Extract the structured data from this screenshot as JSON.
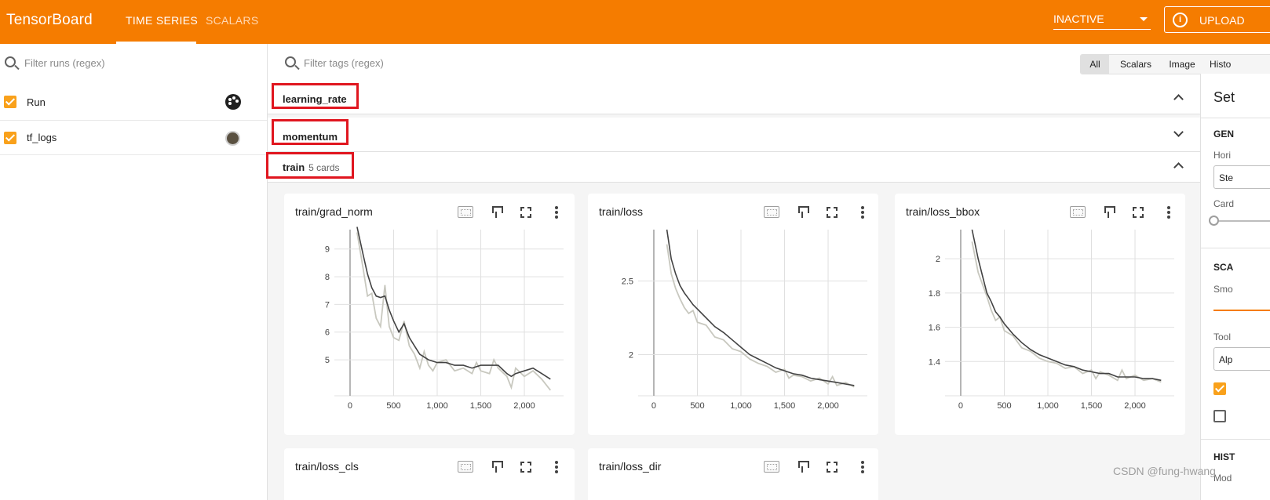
{
  "app": {
    "brand": "TensorBoard"
  },
  "nav": {
    "tabs": [
      "TIME SERIES",
      "SCALARS"
    ],
    "status_select": "INACTIVE",
    "upload_label": "UPLOAD",
    "info_glyph": "i"
  },
  "runs_pane": {
    "filter_placeholder": "Filter runs (regex)",
    "runs": [
      {
        "name": "Run",
        "checked": true,
        "accessory": "palette-icon"
      },
      {
        "name": "tf_logs",
        "checked": true,
        "accessory": "color-swatch",
        "color": "#5a5141"
      }
    ]
  },
  "filter_bar": {
    "placeholder": "Filter tags (regex)",
    "type_buttons": [
      "All",
      "Scalars",
      "Image",
      "Histo"
    ]
  },
  "groups": [
    {
      "name": "learning_rate",
      "count": "",
      "expanded": true
    },
    {
      "name": "momentum",
      "count": "",
      "expanded": false
    },
    {
      "name": "train",
      "count": "5 cards",
      "expanded": true
    }
  ],
  "cards": [
    {
      "title": "train/grad_norm"
    },
    {
      "title": "train/loss"
    },
    {
      "title": "train/loss_bbox"
    },
    {
      "title": "train/loss_cls"
    },
    {
      "title": "train/loss_dir"
    }
  ],
  "settings_panel": {
    "title": "Set",
    "general_heading": "GEN",
    "horizontal_label": "Hori",
    "horizontal_value": "Ste",
    "card_width_label": "Card",
    "scalars_heading": "SCA",
    "smoothing_label": "Smo",
    "tooltip_label": "Tool",
    "tooltip_value": "Alp",
    "histograms_heading": "HIST",
    "mode_label": "Mod"
  },
  "watermark": "CSDN @fung-hwang",
  "colors": {
    "accent": "#f57c00",
    "smoothed_line": "#424242",
    "raw_line": "#c8c8bf",
    "highlight": "#e0161f"
  },
  "chart_data": [
    {
      "type": "line",
      "title": "train/grad_norm",
      "xlabel": "",
      "ylabel": "",
      "xlim": [
        -180,
        2450
      ],
      "ylim": [
        3.7,
        9.7
      ],
      "xticks": [
        0,
        500,
        1000,
        1500,
        2000
      ],
      "xtick_labels": [
        "0",
        "500",
        "1,000",
        "1,500",
        "2,000"
      ],
      "yticks": [
        5,
        6,
        7,
        8,
        9
      ],
      "ytick_labels": [
        "5",
        "6",
        "7",
        "8",
        "9"
      ],
      "series": [
        {
          "role": "smoothed",
          "x": [
            80,
            150,
            200,
            250,
            300,
            350,
            400,
            450,
            500,
            560,
            620,
            680,
            740,
            800,
            900,
            1000,
            1100,
            1200,
            1300,
            1400,
            1500,
            1600,
            1700,
            1800,
            1850,
            1900,
            2000,
            2100,
            2200,
            2300
          ],
          "y": [
            9.8,
            8.8,
            8.1,
            7.6,
            7.3,
            7.25,
            7.3,
            6.8,
            6.4,
            6.0,
            6.3,
            5.8,
            5.5,
            5.2,
            5.0,
            4.9,
            4.9,
            4.8,
            4.8,
            4.7,
            4.8,
            4.8,
            4.8,
            4.5,
            4.4,
            4.5,
            4.6,
            4.7,
            4.5,
            4.3
          ]
        },
        {
          "role": "raw",
          "x": [
            80,
            150,
            200,
            250,
            300,
            350,
            400,
            450,
            500,
            560,
            620,
            680,
            740,
            800,
            850,
            900,
            950,
            1000,
            1100,
            1200,
            1300,
            1400,
            1450,
            1500,
            1600,
            1650,
            1700,
            1800,
            1850,
            1900,
            2000,
            2100,
            2200,
            2300
          ],
          "y": [
            9.6,
            8.3,
            7.3,
            7.4,
            6.5,
            6.2,
            7.7,
            6.2,
            5.8,
            5.7,
            6.4,
            5.5,
            5.2,
            4.7,
            5.3,
            4.8,
            4.6,
            4.9,
            5.0,
            4.6,
            4.7,
            4.5,
            4.9,
            4.6,
            4.5,
            5.0,
            4.7,
            4.4,
            4.0,
            4.7,
            4.4,
            4.6,
            4.3,
            3.9
          ]
        }
      ]
    },
    {
      "type": "line",
      "title": "train/loss",
      "xlabel": "",
      "ylabel": "",
      "xlim": [
        -180,
        2450
      ],
      "ylim": [
        1.72,
        2.85
      ],
      "xticks": [
        0,
        500,
        1000,
        1500,
        2000
      ],
      "xtick_labels": [
        "0",
        "500",
        "1,000",
        "1,500",
        "2,000"
      ],
      "yticks": [
        2,
        2.5
      ],
      "ytick_labels": [
        "2",
        "2.5"
      ],
      "series": [
        {
          "role": "smoothed",
          "x": [
            150,
            200,
            250,
            300,
            350,
            400,
            450,
            500,
            600,
            700,
            800,
            900,
            1000,
            1100,
            1200,
            1300,
            1400,
            1500,
            1600,
            1700,
            1800,
            1900,
            2000,
            2100,
            2200,
            2300
          ],
          "y": [
            2.85,
            2.65,
            2.55,
            2.47,
            2.42,
            2.38,
            2.34,
            2.31,
            2.25,
            2.19,
            2.15,
            2.1,
            2.05,
            2.0,
            1.97,
            1.94,
            1.91,
            1.89,
            1.87,
            1.86,
            1.84,
            1.83,
            1.82,
            1.81,
            1.8,
            1.79
          ]
        },
        {
          "role": "raw",
          "x": [
            150,
            200,
            250,
            300,
            350,
            400,
            450,
            500,
            600,
            700,
            800,
            900,
            1000,
            1100,
            1200,
            1300,
            1400,
            1500,
            1550,
            1600,
            1700,
            1800,
            1900,
            2000,
            2050,
            2100,
            2200,
            2300
          ],
          "y": [
            2.75,
            2.55,
            2.45,
            2.38,
            2.32,
            2.28,
            2.3,
            2.22,
            2.2,
            2.12,
            2.1,
            2.04,
            2.02,
            1.97,
            1.94,
            1.92,
            1.88,
            1.9,
            1.84,
            1.86,
            1.85,
            1.82,
            1.84,
            1.8,
            1.85,
            1.79,
            1.81,
            1.78
          ]
        }
      ]
    },
    {
      "type": "line",
      "title": "train/loss_bbox",
      "xlabel": "",
      "ylabel": "",
      "xlim": [
        -180,
        2450
      ],
      "ylim": [
        1.2,
        2.17
      ],
      "xticks": [
        0,
        500,
        1000,
        1500,
        2000
      ],
      "xtick_labels": [
        "0",
        "500",
        "1,000",
        "1,500",
        "2,000"
      ],
      "yticks": [
        1.4,
        1.6,
        1.8,
        2
      ],
      "ytick_labels": [
        "1.4",
        "1.6",
        "1.8",
        "2"
      ],
      "series": [
        {
          "role": "smoothed",
          "x": [
            130,
            200,
            250,
            300,
            350,
            400,
            450,
            500,
            600,
            700,
            800,
            900,
            1000,
            1100,
            1200,
            1300,
            1400,
            1500,
            1600,
            1700,
            1800,
            1900,
            2000,
            2100,
            2200,
            2300
          ],
          "y": [
            2.17,
            2.0,
            1.9,
            1.8,
            1.75,
            1.69,
            1.66,
            1.62,
            1.56,
            1.51,
            1.47,
            1.44,
            1.42,
            1.4,
            1.38,
            1.37,
            1.35,
            1.34,
            1.33,
            1.33,
            1.31,
            1.31,
            1.31,
            1.3,
            1.3,
            1.29
          ]
        },
        {
          "role": "raw",
          "x": [
            130,
            200,
            250,
            300,
            350,
            400,
            450,
            500,
            600,
            700,
            800,
            900,
            1000,
            1100,
            1200,
            1300,
            1400,
            1500,
            1550,
            1600,
            1700,
            1800,
            1850,
            1900,
            2000,
            2100,
            2200,
            2300
          ],
          "y": [
            2.1,
            1.92,
            1.85,
            1.78,
            1.7,
            1.64,
            1.66,
            1.58,
            1.55,
            1.48,
            1.46,
            1.42,
            1.4,
            1.39,
            1.36,
            1.37,
            1.33,
            1.35,
            1.3,
            1.34,
            1.32,
            1.29,
            1.35,
            1.3,
            1.32,
            1.29,
            1.3,
            1.28
          ]
        }
      ]
    }
  ]
}
